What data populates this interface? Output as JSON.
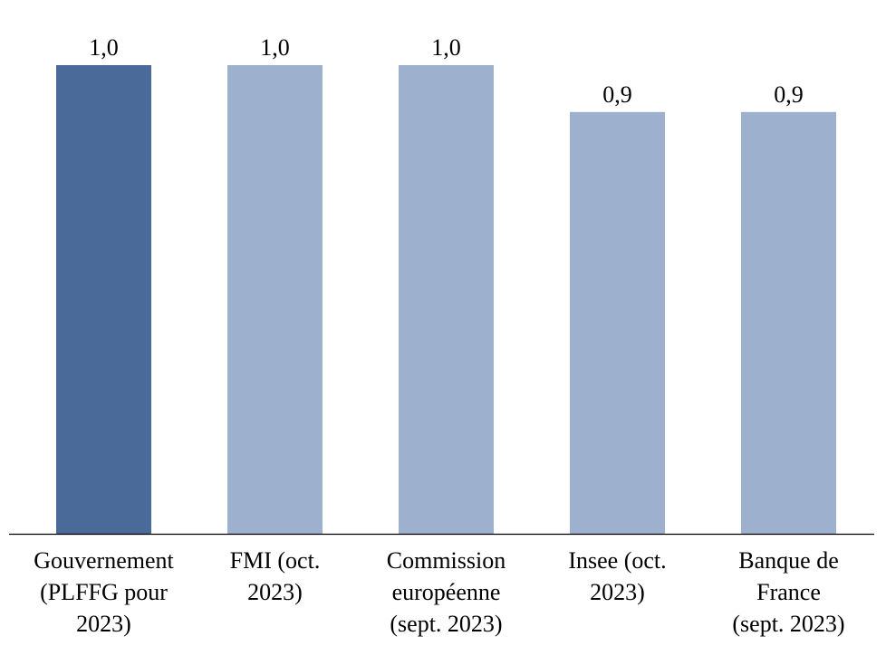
{
  "chart_data": {
    "type": "bar",
    "title": "",
    "xlabel": "",
    "ylabel": "",
    "ylim": [
      0,
      1.0
    ],
    "grid": false,
    "categories": [
      [
        "Gouvernement",
        "(PLFFG pour",
        "2023)"
      ],
      [
        "FMI (oct.",
        "2023)"
      ],
      [
        "Commission",
        "européenne",
        "(sept. 2023)"
      ],
      [
        "Insee (oct.",
        "2023)"
      ],
      [
        "Banque de",
        "France",
        "(sept. 2023)"
      ]
    ],
    "values": [
      1.0,
      1.0,
      1.0,
      0.9,
      0.9
    ],
    "data_labels": [
      "1,0",
      "1,0",
      "1,0",
      "0,9",
      "0,9"
    ],
    "colors": [
      "#4a6a9a",
      "#9db0cd",
      "#9db0cd",
      "#9db0cd",
      "#9db0cd"
    ],
    "axis_color": "#000000"
  }
}
